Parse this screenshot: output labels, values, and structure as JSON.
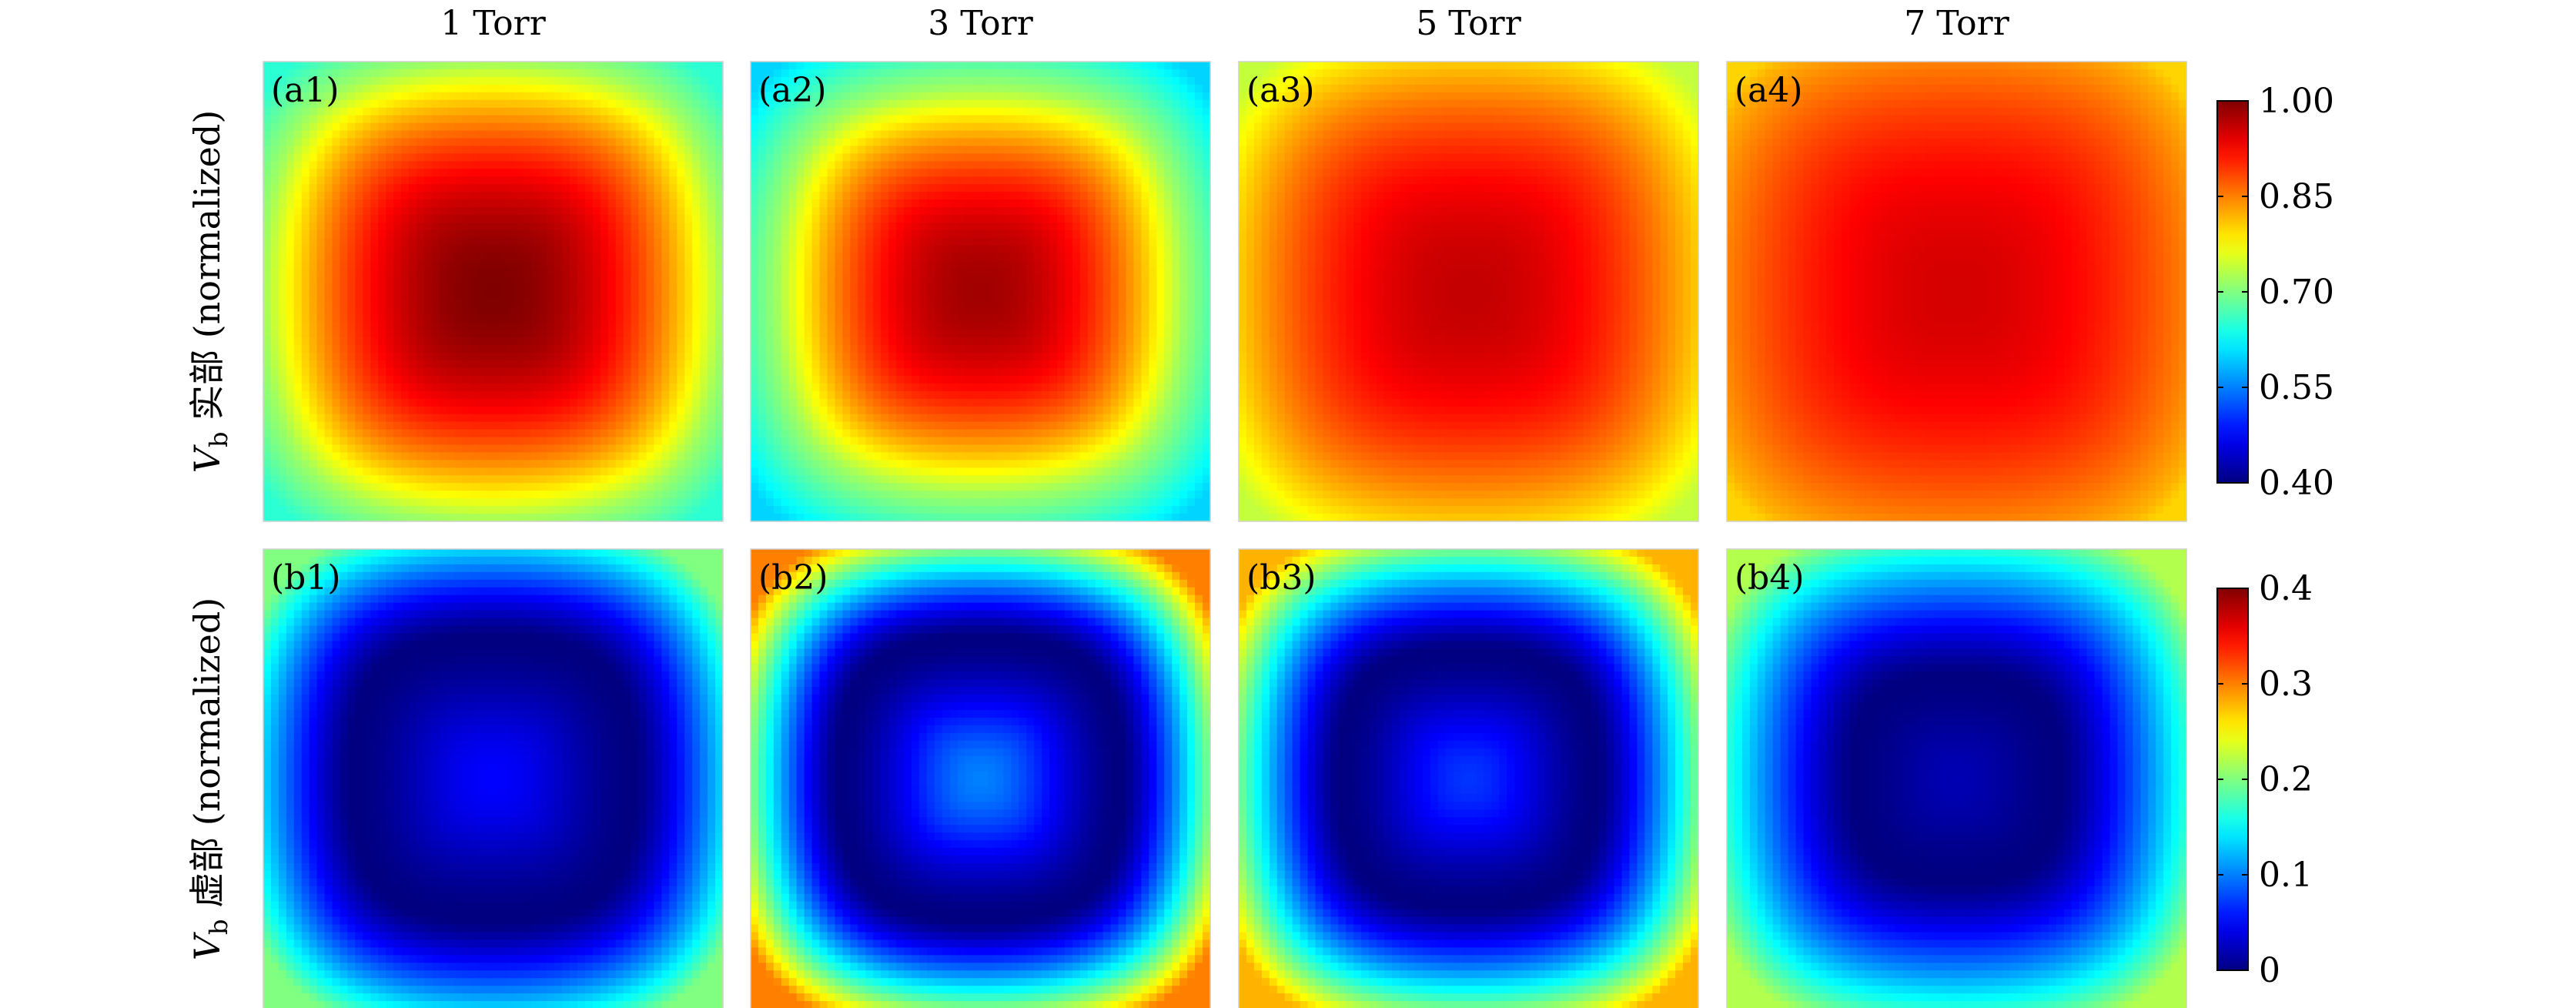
{
  "chart_data": {
    "type": "heatmap",
    "column_titles": [
      "1 Torr",
      "3 Torr",
      "5 Torr",
      "7 Torr"
    ],
    "rows": [
      {
        "label_var": "V",
        "label_sub": "b",
        "label_rest": " 实部 (normalized)",
        "panels": [
          {
            "label": "(a1)",
            "center_value": 1.0,
            "edge_value": 0.65,
            "ring_value": 0.72,
            "ring_radius": 0.88,
            "pattern": "peak"
          },
          {
            "label": "(a2)",
            "center_value": 0.98,
            "edge_value": 0.6,
            "ring_value": 0.72,
            "ring_radius": 0.78,
            "pattern": "peak"
          },
          {
            "label": "(a3)",
            "center_value": 0.96,
            "edge_value": 0.74,
            "ring_value": 0.78,
            "ring_radius": 0.95,
            "pattern": "peak"
          },
          {
            "label": "(a4)",
            "center_value": 0.95,
            "edge_value": 0.8,
            "ring_value": 0.82,
            "ring_radius": 1.0,
            "pattern": "peak"
          }
        ],
        "colorbar": {
          "min": 0.4,
          "max": 1.0,
          "ticks": [
            "0.40",
            "0.55",
            "0.70",
            "0.85",
            "1.00"
          ],
          "tick_values": [
            0.4,
            0.55,
            0.7,
            0.85,
            1.0
          ]
        }
      },
      {
        "label_var": "V",
        "label_sub": "b",
        "label_rest": " 虚部 (normalized)",
        "panels": [
          {
            "label": "(b1)",
            "center_value": 0.05,
            "min_value": 0.0,
            "edge_value": 0.2,
            "min_radius": 0.55,
            "pattern": "bowl"
          },
          {
            "label": "(b2)",
            "center_value": 0.1,
            "min_value": 0.0,
            "edge_value": 0.3,
            "min_radius": 0.55,
            "pattern": "bowl"
          },
          {
            "label": "(b3)",
            "center_value": 0.07,
            "min_value": 0.0,
            "edge_value": 0.28,
            "min_radius": 0.5,
            "pattern": "bowl"
          },
          {
            "label": "(b4)",
            "center_value": 0.02,
            "min_value": 0.0,
            "edge_value": 0.22,
            "min_radius": 0.4,
            "pattern": "bowl"
          }
        ],
        "colorbar": {
          "min": 0.0,
          "max": 0.4,
          "ticks": [
            "0",
            "0.1",
            "0.2",
            "0.3",
            "0.4"
          ],
          "tick_values": [
            0.0,
            0.1,
            0.2,
            0.3,
            0.4
          ]
        }
      }
    ],
    "colormap": "jet"
  }
}
